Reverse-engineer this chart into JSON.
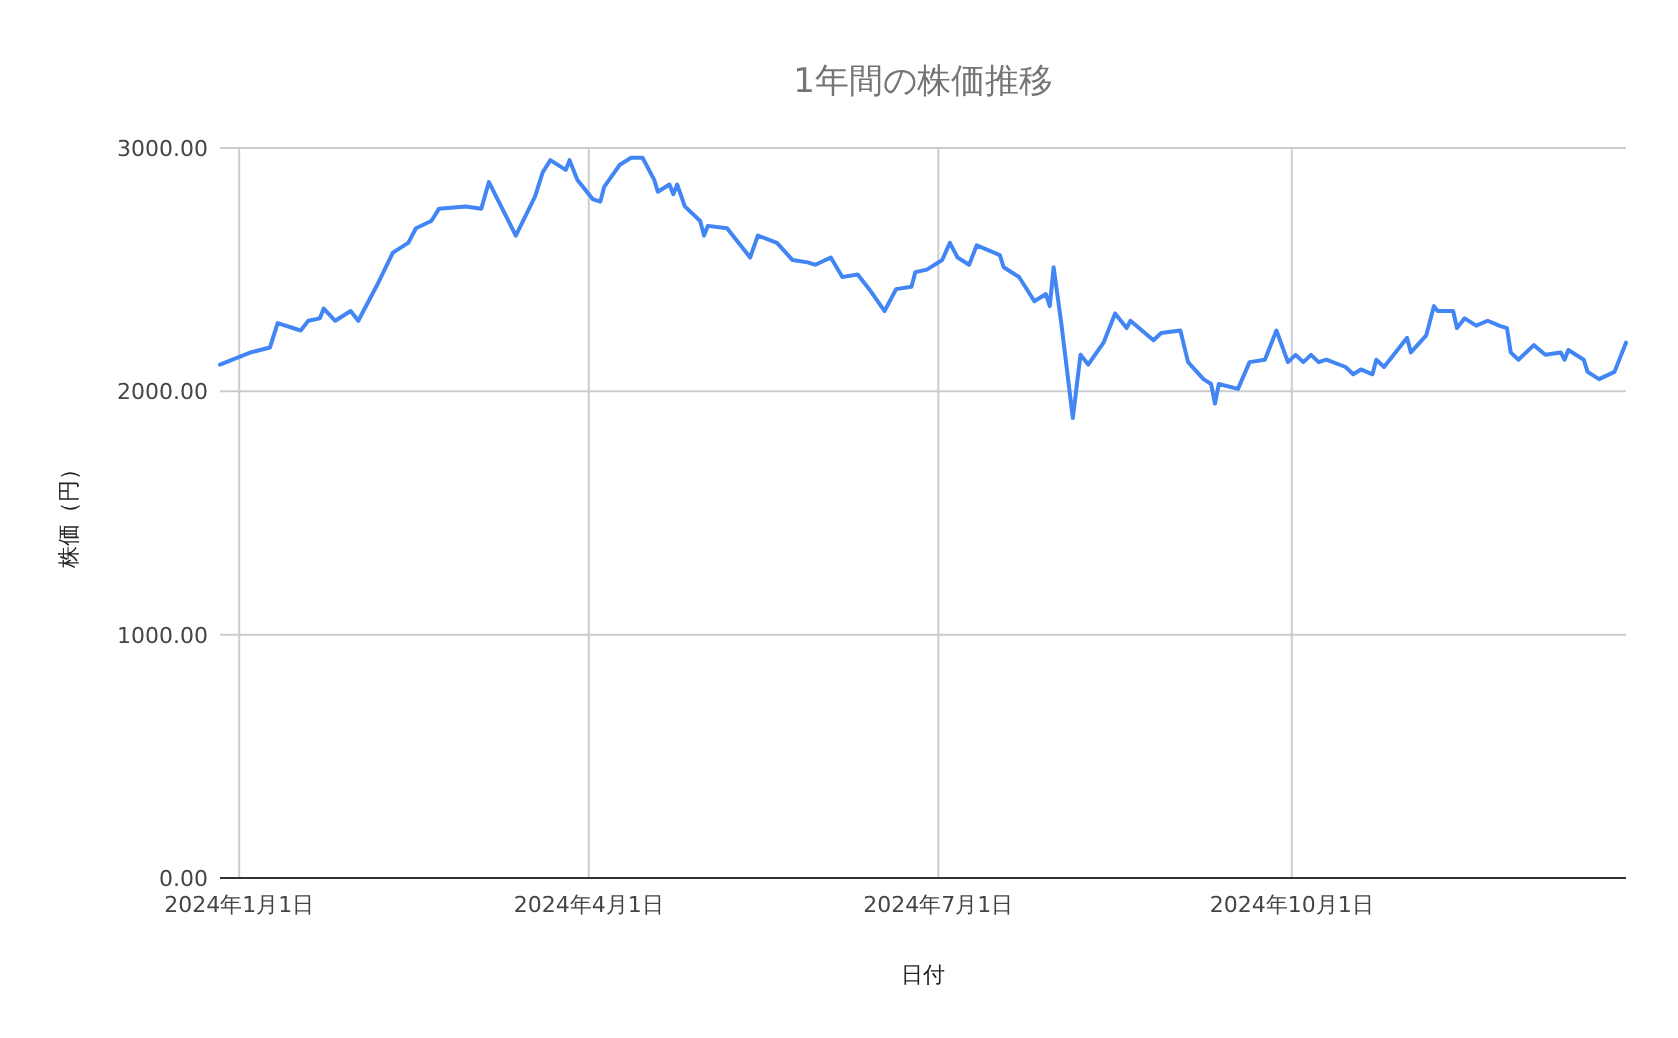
{
  "chart_data": {
    "type": "line",
    "title": "1年間の株価推移",
    "xlabel": "日付",
    "ylabel": "株価（円）",
    "x": [
      "2023-12-27",
      "2024-01-04",
      "2024-01-09",
      "2024-01-11",
      "2024-01-17",
      "2024-01-19",
      "2024-01-22",
      "2024-01-23",
      "2024-01-26",
      "2024-01-30",
      "2024-02-01",
      "2024-02-06",
      "2024-02-10",
      "2024-02-14",
      "2024-02-16",
      "2024-02-20",
      "2024-02-22",
      "2024-02-29",
      "2024-03-04",
      "2024-03-06",
      "2024-03-13",
      "2024-03-18",
      "2024-03-20",
      "2024-03-22",
      "2024-03-26",
      "2024-03-27",
      "2024-03-29",
      "2024-04-02",
      "2024-04-04",
      "2024-04-05",
      "2024-04-09",
      "2024-04-12",
      "2024-04-15",
      "2024-04-18",
      "2024-04-19",
      "2024-04-22",
      "2024-04-23",
      "2024-04-24",
      "2024-04-26",
      "2024-04-30",
      "2024-05-01",
      "2024-05-02",
      "2024-05-07",
      "2024-05-13",
      "2024-05-15",
      "2024-05-20",
      "2024-05-24",
      "2024-05-28",
      "2024-05-30",
      "2024-06-03",
      "2024-06-06",
      "2024-06-10",
      "2024-06-13",
      "2024-06-17",
      "2024-06-20",
      "2024-06-24",
      "2024-06-25",
      "2024-06-28",
      "2024-07-02",
      "2024-07-04",
      "2024-07-06",
      "2024-07-09",
      "2024-07-11",
      "2024-07-17",
      "2024-07-18",
      "2024-07-22",
      "2024-07-26",
      "2024-07-29",
      "2024-07-30",
      "2024-07-31",
      "2024-08-02",
      "2024-08-05",
      "2024-08-07",
      "2024-08-09",
      "2024-08-13",
      "2024-08-16",
      "2024-08-19",
      "2024-08-20",
      "2024-08-23",
      "2024-08-26",
      "2024-08-28",
      "2024-09-02",
      "2024-09-04",
      "2024-09-08",
      "2024-09-10",
      "2024-09-11",
      "2024-09-12",
      "2024-09-17",
      "2024-09-20",
      "2024-09-24",
      "2024-09-27",
      "2024-09-30",
      "2024-10-02",
      "2024-10-04",
      "2024-10-06",
      "2024-10-08",
      "2024-10-10",
      "2024-10-15",
      "2024-10-17",
      "2024-10-19",
      "2024-10-22",
      "2024-10-23",
      "2024-10-25",
      "2024-10-28",
      "2024-10-31",
      "2024-11-01",
      "2024-11-05",
      "2024-11-07",
      "2024-11-08",
      "2024-11-12",
      "2024-11-13",
      "2024-11-15",
      "2024-11-18",
      "2024-11-21",
      "2024-11-24",
      "2024-11-26",
      "2024-11-27",
      "2024-11-29",
      "2024-12-03",
      "2024-12-06",
      "2024-12-10",
      "2024-12-11",
      "2024-12-12",
      "2024-12-16",
      "2024-12-17",
      "2024-12-20",
      "2024-12-24",
      "2024-12-27"
    ],
    "series": [
      {
        "color": "#4285f4",
        "values": [
          2110,
          2160,
          2180,
          2280,
          2250,
          2290,
          2300,
          2340,
          2290,
          2330,
          2290,
          2440,
          2570,
          2610,
          2670,
          2700,
          2750,
          2760,
          2750,
          2860,
          2640,
          2800,
          2900,
          2950,
          2910,
          2950,
          2870,
          2790,
          2780,
          2840,
          2930,
          2960,
          2960,
          2870,
          2820,
          2850,
          2810,
          2850,
          2760,
          2700,
          2640,
          2680,
          2670,
          2550,
          2640,
          2610,
          2540,
          2530,
          2520,
          2550,
          2470,
          2480,
          2420,
          2330,
          2420,
          2430,
          2490,
          2500,
          2540,
          2610,
          2550,
          2520,
          2600,
          2560,
          2510,
          2470,
          2370,
          2400,
          2350,
          2510,
          2280,
          1890,
          2150,
          2110,
          2200,
          2320,
          2260,
          2290,
          2250,
          2210,
          2240,
          2250,
          2120,
          2050,
          2030,
          1950,
          2030,
          2010,
          2120,
          2130,
          2250,
          2120,
          2150,
          2120,
          2150,
          2120,
          2130,
          2100,
          2070,
          2090,
          2070,
          2130,
          2100,
          2160,
          2220,
          2160,
          2230,
          2350,
          2330,
          2330,
          2260,
          2300,
          2270,
          2290,
          2270,
          2260,
          2160,
          2130,
          2190,
          2150,
          2160,
          2130,
          2170,
          2130,
          2080,
          2050,
          2080,
          2200
        ]
      }
    ],
    "xlim": [
      "2023-12-27",
      "2024-12-27"
    ],
    "xticks": [
      {
        "value": "2024-01-01",
        "label": "2024年1月1日"
      },
      {
        "value": "2024-04-01",
        "label": "2024年4月1日"
      },
      {
        "value": "2024-07-01",
        "label": "2024年7月1日"
      },
      {
        "value": "2024-10-01",
        "label": "2024年10月1日"
      }
    ],
    "ylim": [
      0,
      3000
    ],
    "yticks": [
      {
        "value": 0,
        "label": "0.00"
      },
      {
        "value": 1000,
        "label": "1000.00"
      },
      {
        "value": 2000,
        "label": "2000.00"
      },
      {
        "value": 3000,
        "label": "3000.00"
      }
    ],
    "grid": true,
    "marker": "none",
    "line_style": "solid"
  }
}
